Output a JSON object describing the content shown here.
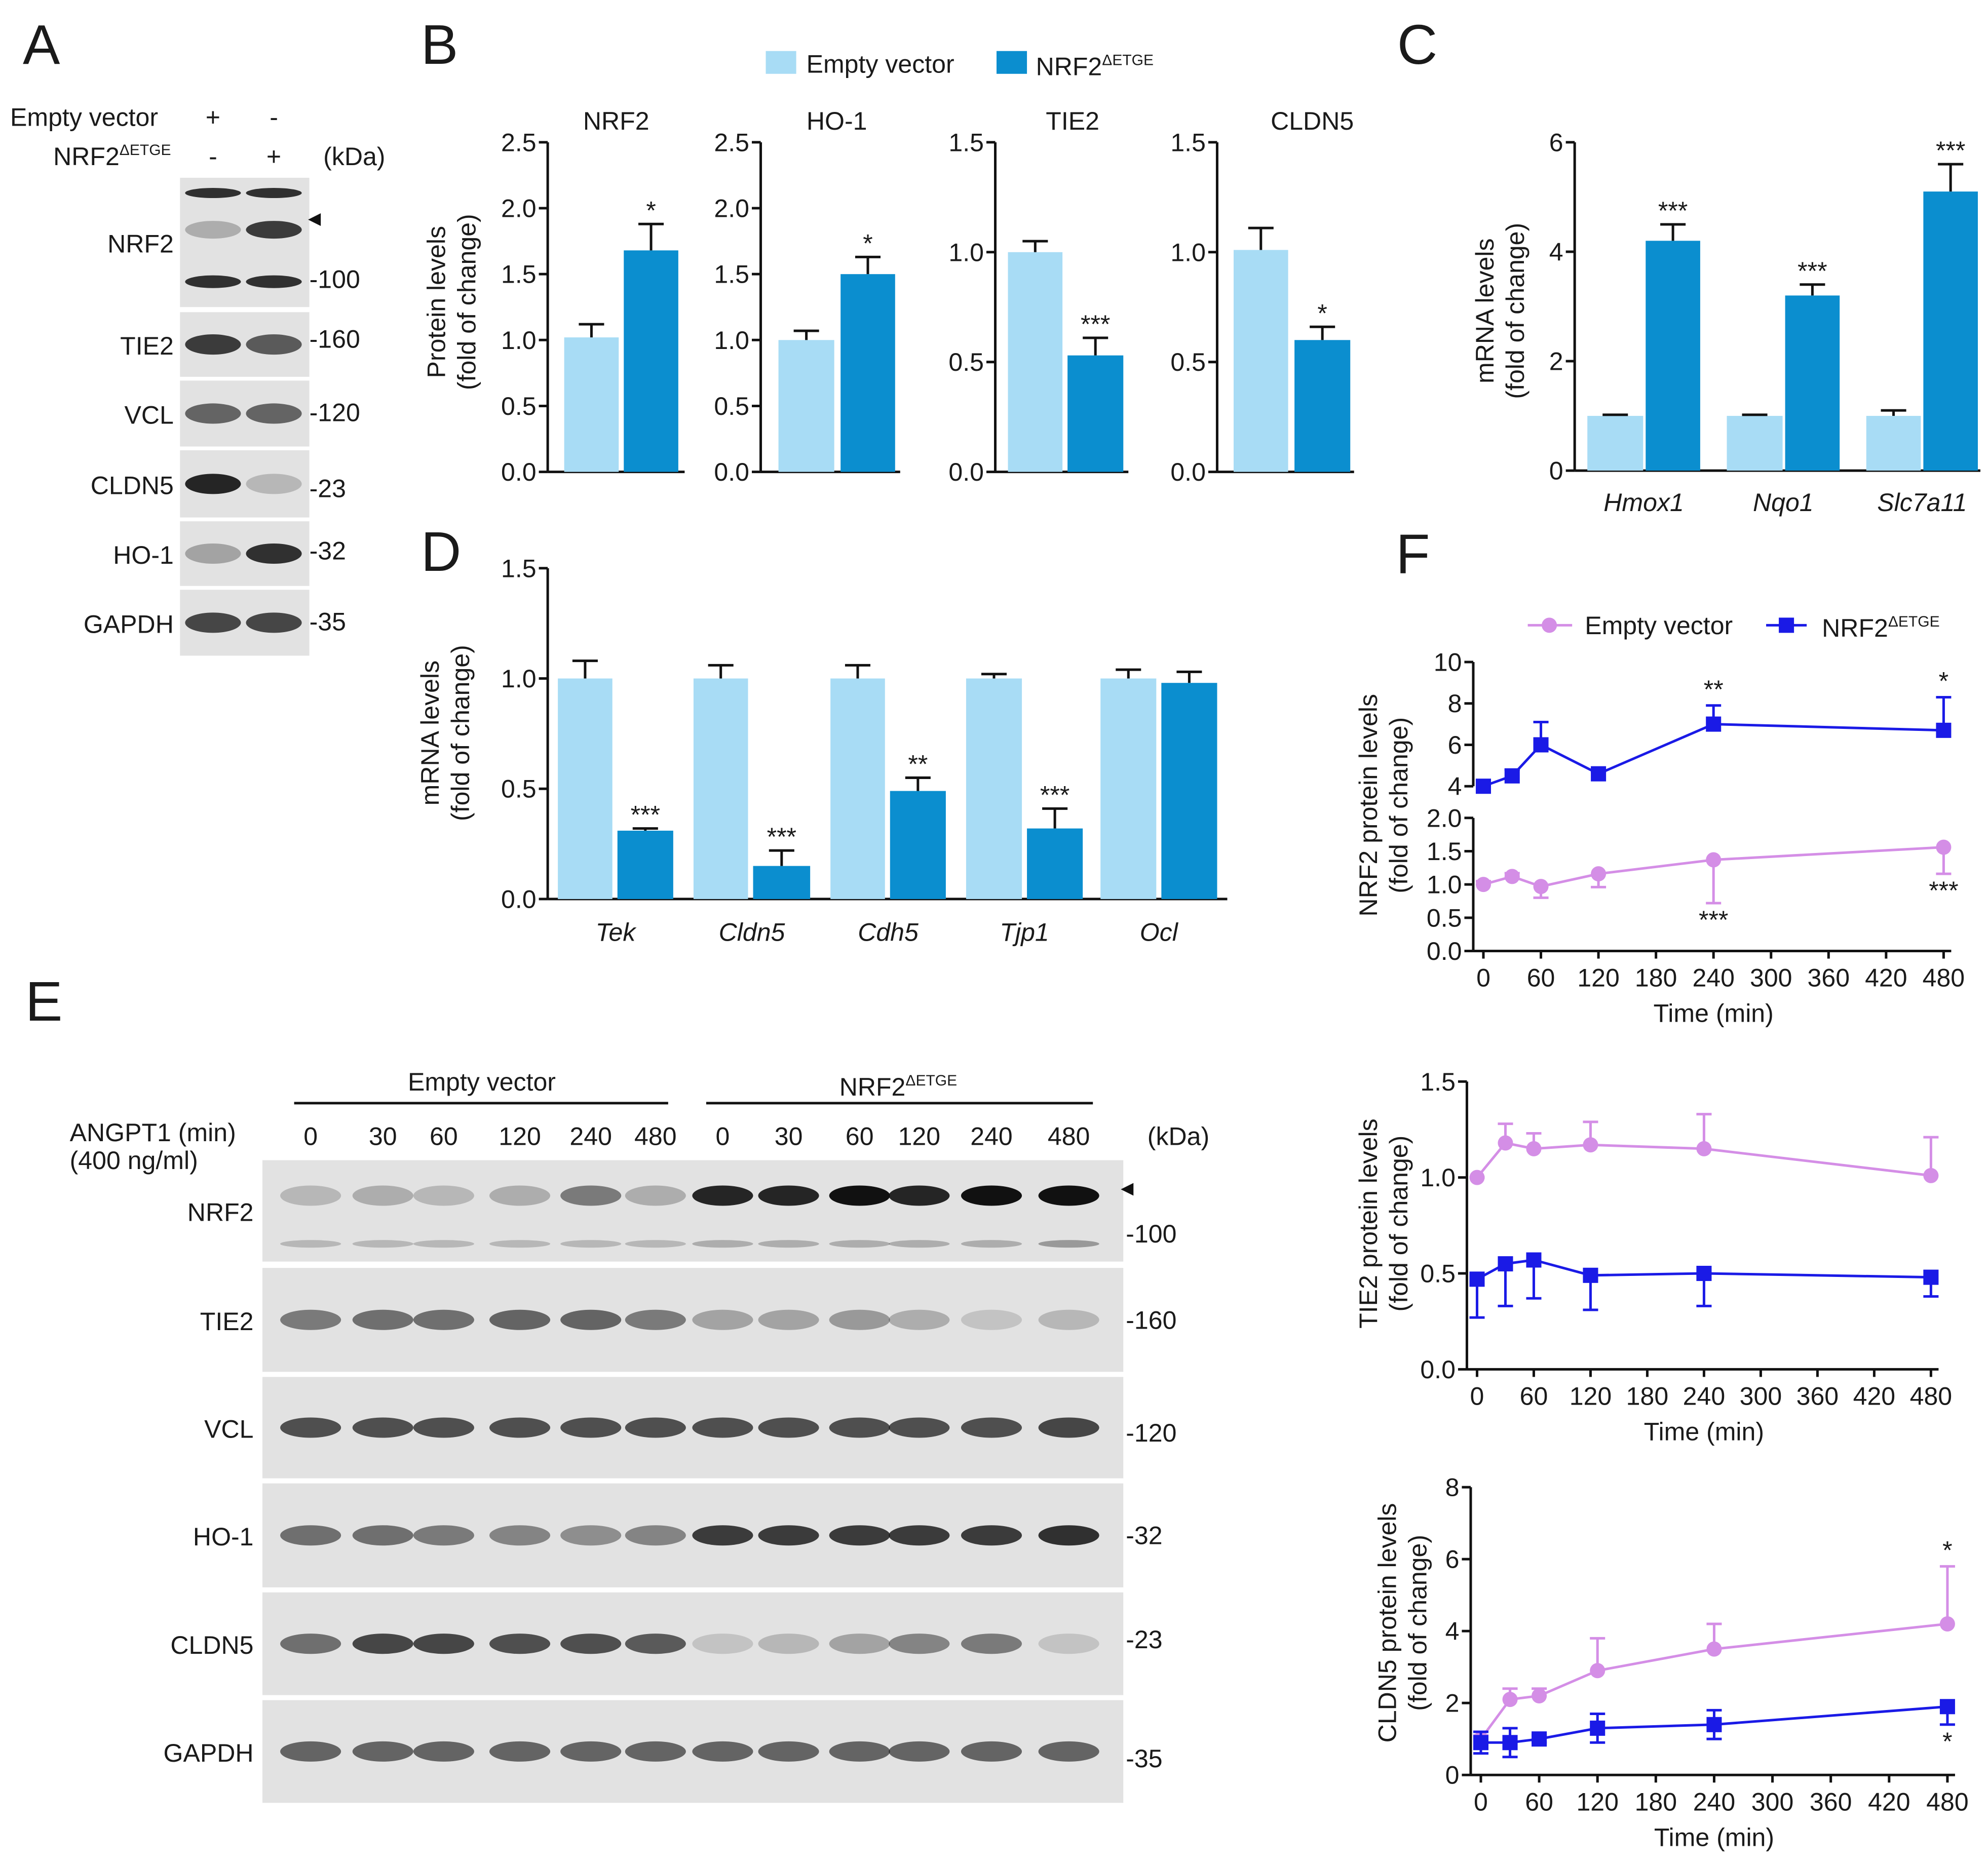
{
  "panel_labels": [
    "A",
    "B",
    "C",
    "D",
    "E",
    "F"
  ],
  "colors": {
    "empty": "#a8dcf5",
    "nrf2": "#0b8ecf",
    "empty_line": "#d48ee6",
    "nrf2_line": "#1a1ae6",
    "blot_bg": "#e2e2e2"
  },
  "legend_B": {
    "items": [
      {
        "main": "Empty vector",
        "sup": ""
      },
      {
        "main": "NRF2",
        "sup": "ΔETGE"
      }
    ]
  },
  "legend_F": {
    "items": [
      {
        "main": "Empty vector",
        "sup": ""
      },
      {
        "main": "NRF2",
        "sup": "ΔETGE"
      }
    ]
  },
  "panel_A": {
    "header": {
      "row1_label": "Empty vector",
      "row1_signs": [
        "+",
        "-"
      ],
      "row2_label": {
        "main": "NRF2",
        "sup": "ΔETGE"
      },
      "row2_signs": [
        "-",
        "+"
      ],
      "kda_unit": "(kDa)"
    },
    "blots": [
      {
        "protein": "NRF2",
        "marker": "-100",
        "bands": [
          0.25,
          0.8
        ],
        "upper": [
          0.85,
          0.85
        ],
        "lower": [
          0.85,
          0.85
        ]
      },
      {
        "protein": "TIE2",
        "marker": "-160",
        "bands": [
          0.8,
          0.65
        ]
      },
      {
        "protein": "VCL",
        "marker": "-120",
        "bands": [
          0.6,
          0.6
        ]
      },
      {
        "protein": "CLDN5",
        "marker": "-23",
        "bands": [
          0.9,
          0.2
        ]
      },
      {
        "protein": "HO-1",
        "marker": "-32",
        "bands": [
          0.3,
          0.85
        ]
      },
      {
        "protein": "GAPDH",
        "marker": "-35",
        "bands": [
          0.75,
          0.75
        ]
      }
    ]
  },
  "panel_E": {
    "header": {
      "group1": "Empty vector",
      "group2": {
        "main": "NRF2",
        "sup": "ΔETGE"
      },
      "treatment": "ANGPT1 (min)",
      "dose": "(400 ng/ml)",
      "times": [
        "0",
        "30",
        "60",
        "120",
        "240",
        "480",
        "0",
        "30",
        "60",
        "120",
        "240",
        "480"
      ],
      "kda_unit": "(kDa)"
    },
    "blots": [
      {
        "protein": "NRF2",
        "marker": "-100",
        "bands": [
          0.2,
          0.25,
          0.2,
          0.25,
          0.5,
          0.25,
          0.9,
          0.9,
          1,
          0.9,
          1,
          1
        ],
        "lower": [
          0.2,
          0.2,
          0.2,
          0.2,
          0.2,
          0.2,
          0.25,
          0.25,
          0.25,
          0.25,
          0.25,
          0.35
        ]
      },
      {
        "protein": "TIE2",
        "marker": "-160",
        "bands": [
          0.5,
          0.55,
          0.55,
          0.6,
          0.6,
          0.5,
          0.3,
          0.3,
          0.35,
          0.25,
          0.15,
          0.2
        ]
      },
      {
        "protein": "VCL",
        "marker": "-120",
        "bands": [
          0.7,
          0.7,
          0.7,
          0.7,
          0.7,
          0.7,
          0.7,
          0.7,
          0.7,
          0.7,
          0.7,
          0.75
        ]
      },
      {
        "protein": "HO-1",
        "marker": "-32",
        "bands": [
          0.55,
          0.55,
          0.5,
          0.45,
          0.4,
          0.45,
          0.8,
          0.8,
          0.8,
          0.8,
          0.8,
          0.85
        ]
      },
      {
        "protein": "CLDN5",
        "marker": "-23",
        "bands": [
          0.55,
          0.75,
          0.75,
          0.7,
          0.7,
          0.65,
          0.15,
          0.2,
          0.3,
          0.45,
          0.5,
          0.15
        ]
      },
      {
        "protein": "GAPDH",
        "marker": "-35",
        "bands": [
          0.6,
          0.6,
          0.6,
          0.6,
          0.6,
          0.6,
          0.6,
          0.6,
          0.6,
          0.6,
          0.6,
          0.6
        ]
      }
    ]
  },
  "chart_data": {
    "B": [
      {
        "type": "bar",
        "title": "NRF2",
        "ylabel": [
          "Protein levels",
          "(fold of change)"
        ],
        "ylim": [
          0,
          2.5
        ],
        "yticks": [
          0,
          0.5,
          1,
          1.5,
          2,
          2.5
        ],
        "ytick_labels": [
          "0.0",
          "0.5",
          "1.0",
          "1.5",
          "2.0",
          "2.5"
        ],
        "series": [
          {
            "name": "Empty vector",
            "values": [
              1.02
            ],
            "err": [
              0.1
            ],
            "sig": [
              ""
            ]
          },
          {
            "name": "NRF2ΔETGE",
            "values": [
              1.68
            ],
            "err": [
              0.2
            ],
            "sig": [
              "*"
            ]
          }
        ]
      },
      {
        "type": "bar",
        "title": "HO-1",
        "ylim": [
          0,
          2.5
        ],
        "yticks": [
          0,
          0.5,
          1,
          1.5,
          2,
          2.5
        ],
        "ytick_labels": [
          "0.0",
          "0.5",
          "1.0",
          "1.5",
          "2.0",
          "2.5"
        ],
        "series": [
          {
            "name": "Empty vector",
            "values": [
              1.0
            ],
            "err": [
              0.07
            ],
            "sig": [
              ""
            ]
          },
          {
            "name": "NRF2ΔETGE",
            "values": [
              1.5
            ],
            "err": [
              0.13
            ],
            "sig": [
              "*"
            ]
          }
        ]
      },
      {
        "type": "bar",
        "title": "TIE2",
        "ylim": [
          0,
          1.5
        ],
        "yticks": [
          0,
          0.5,
          1,
          1.5
        ],
        "ytick_labels": [
          "0.0",
          "0.5",
          "1.0",
          "1.5"
        ],
        "series": [
          {
            "name": "Empty vector",
            "values": [
              1.0
            ],
            "err": [
              0.05
            ],
            "sig": [
              ""
            ]
          },
          {
            "name": "NRF2ΔETGE",
            "values": [
              0.53
            ],
            "err": [
              0.08
            ],
            "sig": [
              "***"
            ]
          }
        ]
      },
      {
        "type": "bar",
        "title": "CLDN5",
        "ylim": [
          0,
          1.5
        ],
        "yticks": [
          0,
          0.5,
          1,
          1.5
        ],
        "ytick_labels": [
          "0.0",
          "0.5",
          "1.0",
          "1.5"
        ],
        "series": [
          {
            "name": "Empty vector",
            "values": [
              1.01
            ],
            "err": [
              0.1
            ],
            "sig": [
              ""
            ]
          },
          {
            "name": "NRF2ΔETGE",
            "values": [
              0.6
            ],
            "err": [
              0.06
            ],
            "sig": [
              "*"
            ]
          }
        ]
      }
    ],
    "C": {
      "type": "bar",
      "ylabel": [
        "mRNA levels",
        "(fold of change)"
      ],
      "categories": [
        "Hmox1",
        "Nqo1",
        "Slc7a11"
      ],
      "ylim": [
        0,
        6
      ],
      "yticks": [
        0,
        2,
        4,
        6
      ],
      "ytick_labels": [
        "0",
        "2",
        "4",
        "6"
      ],
      "series": [
        {
          "name": "Empty vector",
          "values": [
            1,
            1,
            1
          ],
          "err": [
            0.02,
            0.02,
            0.1
          ],
          "sig": [
            "",
            "",
            ""
          ]
        },
        {
          "name": "NRF2ΔETGE",
          "values": [
            4.2,
            3.2,
            5.1
          ],
          "err": [
            0.3,
            0.2,
            0.5
          ],
          "sig": [
            "***",
            "***",
            "***"
          ]
        }
      ]
    },
    "D": {
      "type": "bar",
      "ylabel": [
        "mRNA levels",
        "(fold of change)"
      ],
      "categories": [
        "Tek",
        "Cldn5",
        "Cdh5",
        "Tjp1",
        "Ocl"
      ],
      "ylim": [
        0,
        1.5
      ],
      "yticks": [
        0,
        0.5,
        1,
        1.5
      ],
      "ytick_labels": [
        "0.0",
        "0.5",
        "1.0",
        "1.5"
      ],
      "series": [
        {
          "name": "Empty vector",
          "values": [
            1,
            1,
            1,
            1,
            1
          ],
          "err": [
            0.08,
            0.06,
            0.06,
            0.02,
            0.04
          ],
          "sig": [
            "",
            "",
            "",
            "",
            ""
          ]
        },
        {
          "name": "NRF2ΔETGE",
          "values": [
            0.31,
            0.15,
            0.49,
            0.32,
            0.98
          ],
          "err": [
            0.01,
            0.07,
            0.06,
            0.09,
            0.05
          ],
          "sig": [
            "***",
            "***",
            "**",
            "***",
            ""
          ]
        }
      ]
    },
    "F": [
      {
        "type": "line",
        "ylabel": [
          "NRF2 protein levels",
          "(fold of change)"
        ],
        "xlabel": "Time (min)",
        "xlim": [
          0,
          480
        ],
        "xticks": [
          0,
          60,
          120,
          180,
          240,
          300,
          360,
          420,
          480
        ],
        "xtick_labels": [
          "0",
          "60",
          "120",
          "180",
          "240",
          "300",
          "360",
          "420",
          "480"
        ],
        "y_segments": [
          {
            "ylim": [
              0,
              2
            ],
            "yticks": [
              0,
              0.5,
              1,
              1.5,
              2
            ],
            "ytick_labels": [
              "0.0",
              "0.5",
              "1.0",
              "1.5",
              "2.0"
            ]
          },
          {
            "ylim": [
              4,
              10
            ],
            "yticks": [
              4,
              6,
              8,
              10
            ],
            "ytick_labels": [
              "4",
              "6",
              "8",
              "10"
            ]
          }
        ],
        "x": [
          0,
          30,
          60,
          120,
          240,
          480
        ],
        "series": [
          {
            "name": "Empty vector",
            "marker": "circle",
            "values": [
              1.0,
              1.12,
              0.97,
              1.16,
              1.37,
              1.56
            ],
            "err": [
              0.05,
              0.05,
              0.17,
              0.2,
              0.65,
              0.4
            ],
            "err_dir": [
              "up",
              "up",
              "down",
              "down",
              "down",
              "down"
            ],
            "sig": [
              null,
              null,
              null,
              null,
              {
                "text": "***",
                "pos": "below"
              },
              {
                "text": "***",
                "pos": "below"
              }
            ]
          },
          {
            "name": "NRF2ΔETGE",
            "marker": "square",
            "values": [
              4.0,
              4.5,
              6.0,
              4.6,
              7.0,
              6.7
            ],
            "err": [
              0.3,
              0.3,
              1.1,
              0.1,
              0.9,
              1.6
            ],
            "err_dir": [
              "up",
              "up",
              "up",
              "up",
              "up",
              "up"
            ],
            "sig": [
              null,
              null,
              null,
              null,
              {
                "text": "**",
                "pos": "above"
              },
              {
                "text": "*",
                "pos": "above"
              }
            ]
          }
        ]
      },
      {
        "type": "line",
        "ylabel": [
          "TIE2 protein levels",
          "(fold of change)"
        ],
        "xlabel": "Time (min)",
        "xlim": [
          0,
          480
        ],
        "xticks": [
          0,
          60,
          120,
          180,
          240,
          300,
          360,
          420,
          480
        ],
        "xtick_labels": [
          "0",
          "60",
          "120",
          "180",
          "240",
          "300",
          "360",
          "420",
          "480"
        ],
        "y_segments": [
          {
            "ylim": [
              0,
              1.5
            ],
            "yticks": [
              0,
              0.5,
              1,
              1.5
            ],
            "ytick_labels": [
              "0.0",
              "0.5",
              "1.0",
              "1.5"
            ]
          }
        ],
        "x": [
          0,
          30,
          60,
          120,
          240,
          480
        ],
        "series": [
          {
            "name": "Empty vector",
            "marker": "circle",
            "values": [
              1.0,
              1.18,
              1.15,
              1.17,
              1.15,
              1.01
            ],
            "err": [
              0,
              0.1,
              0.08,
              0.12,
              0.18,
              0.2
            ],
            "err_dir": [
              "up",
              "up",
              "up",
              "up",
              "up",
              "up"
            ],
            "sig": [
              null,
              null,
              null,
              null,
              null,
              null
            ]
          },
          {
            "name": "NRF2ΔETGE",
            "marker": "square",
            "values": [
              0.47,
              0.55,
              0.57,
              0.49,
              0.5,
              0.48
            ],
            "err": [
              0.2,
              0.22,
              0.2,
              0.18,
              0.17,
              0.1
            ],
            "err_dir": [
              "down",
              "down",
              "down",
              "down",
              "down",
              "down"
            ],
            "sig": [
              null,
              null,
              null,
              null,
              null,
              null
            ]
          }
        ]
      },
      {
        "type": "line",
        "ylabel": [
          "CLDN5 protein levels",
          "(fold of change)"
        ],
        "xlabel": "Time (min)",
        "xlim": [
          0,
          480
        ],
        "xticks": [
          0,
          60,
          120,
          180,
          240,
          300,
          360,
          420,
          480
        ],
        "xtick_labels": [
          "0",
          "60",
          "120",
          "180",
          "240",
          "300",
          "360",
          "420",
          "480"
        ],
        "y_segments": [
          {
            "ylim": [
              0,
              8
            ],
            "yticks": [
              0,
              2,
              4,
              6,
              8
            ],
            "ytick_labels": [
              "0",
              "2",
              "4",
              "6",
              "8"
            ]
          }
        ],
        "x": [
          0,
          30,
          60,
          120,
          240,
          480
        ],
        "series": [
          {
            "name": "Empty vector",
            "marker": "circle",
            "values": [
              1.0,
              2.1,
              2.2,
              2.9,
              3.5,
              4.2
            ],
            "err": [
              0.1,
              0.3,
              0.2,
              0.9,
              0.7,
              1.6
            ],
            "err_dir": [
              "up",
              "up",
              "up",
              "up",
              "up",
              "up"
            ],
            "sig": [
              null,
              null,
              null,
              null,
              null,
              {
                "text": "*",
                "pos": "above"
              }
            ]
          },
          {
            "name": "NRF2ΔETGE",
            "marker": "square",
            "values": [
              0.9,
              0.9,
              1.0,
              1.3,
              1.4,
              1.9
            ],
            "err": [
              0.3,
              0.4,
              0.1,
              0.4,
              0.4,
              0.5
            ],
            "err_dir": [
              "both",
              "both",
              "both",
              "both",
              "both",
              "down"
            ],
            "sig": [
              null,
              null,
              null,
              null,
              null,
              {
                "text": "*",
                "pos": "below"
              }
            ]
          }
        ]
      }
    ]
  }
}
